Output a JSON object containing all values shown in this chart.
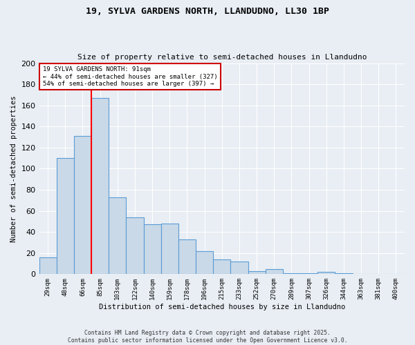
{
  "title1": "19, SYLVA GARDENS NORTH, LLANDUDNO, LL30 1BP",
  "title2": "Size of property relative to semi-detached houses in Llandudno",
  "xlabel": "Distribution of semi-detached houses by size in Llandudno",
  "ylabel": "Number of semi-detached properties",
  "categories": [
    "29sqm",
    "48sqm",
    "66sqm",
    "85sqm",
    "103sqm",
    "122sqm",
    "140sqm",
    "159sqm",
    "178sqm",
    "196sqm",
    "215sqm",
    "233sqm",
    "252sqm",
    "270sqm",
    "289sqm",
    "307sqm",
    "326sqm",
    "344sqm",
    "363sqm",
    "381sqm",
    "400sqm"
  ],
  "bar_heights": [
    16,
    110,
    131,
    167,
    73,
    54,
    47,
    48,
    33,
    22,
    14,
    12,
    3,
    5,
    1,
    1,
    2,
    1,
    0,
    0,
    0
  ],
  "bar_color": "#c9d9e8",
  "bar_edge_color": "#5b9bd5",
  "pct_smaller": 44,
  "pct_smaller_count": 327,
  "pct_larger": 54,
  "pct_larger_count": 397,
  "vline_bin_index": 3,
  "annotation_box_color": "#cc0000",
  "background_color": "#e8eef4",
  "footer": "Contains HM Land Registry data © Crown copyright and database right 2025.\nContains public sector information licensed under the Open Government Licence v3.0.",
  "ylim": [
    0,
    200
  ],
  "yticks": [
    0,
    20,
    40,
    60,
    80,
    100,
    120,
    140,
    160,
    180,
    200
  ]
}
